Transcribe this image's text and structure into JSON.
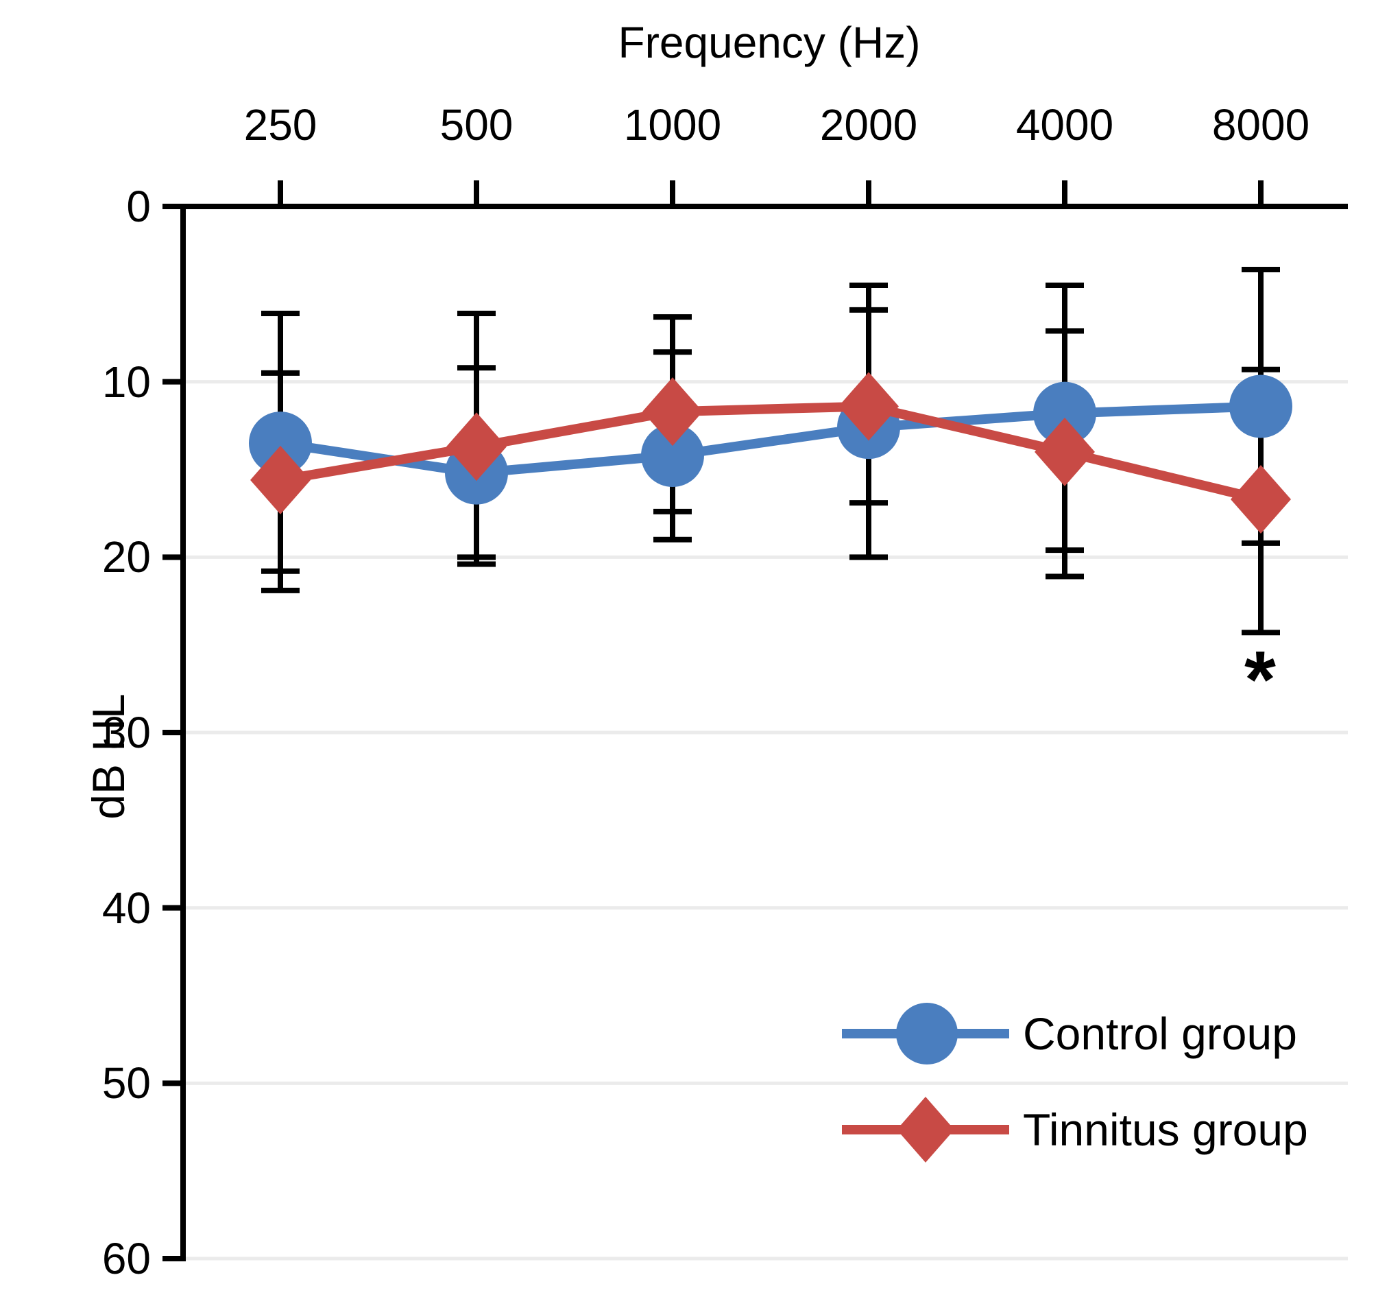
{
  "chart_data": {
    "type": "line",
    "title": "Frequency (Hz)",
    "x_axis_position": "top",
    "ylabel": "dB HL",
    "y_axis_inverted": true,
    "ylim": [
      0,
      60
    ],
    "y_ticks": [
      "0",
      "10",
      "20",
      "30",
      "40",
      "50",
      "60"
    ],
    "categories": [
      "250",
      "500",
      "1000",
      "2000",
      "4000",
      "8000"
    ],
    "grid": "light horizontal gridlines every 10 dB",
    "error_bars": "black vertical whiskers with end caps on every point of both series",
    "legend_position": "inside bottom-right",
    "colors": {
      "control": "#4a7ebf",
      "tinnitus": "#c84a45",
      "axis": "#000000",
      "gridline": "#ebebeb"
    },
    "series": [
      {
        "name": "Control group",
        "marker": "circle",
        "color": "#4a7ebf",
        "values": [
          13.5,
          15.2,
          14.2,
          12.6,
          11.8,
          11.4
        ],
        "err_top": [
          6.1,
          9.2,
          8.3,
          5.9,
          4.5,
          3.6
        ],
        "err_bottom": [
          20.8,
          20.4,
          19.0,
          20.0,
          19.6,
          19.2
        ]
      },
      {
        "name": "Tinnitus group",
        "marker": "diamond",
        "color": "#c84a45",
        "values": [
          15.6,
          13.7,
          11.7,
          11.4,
          14.0,
          16.7
        ],
        "err_top": [
          9.5,
          6.1,
          6.3,
          4.5,
          7.1,
          9.3
        ],
        "err_bottom": [
          21.9,
          20.0,
          17.4,
          16.9,
          21.1,
          24.3
        ]
      }
    ],
    "annotations": [
      {
        "text": "*",
        "category": "8000",
        "y_db": 26.5
      }
    ]
  }
}
